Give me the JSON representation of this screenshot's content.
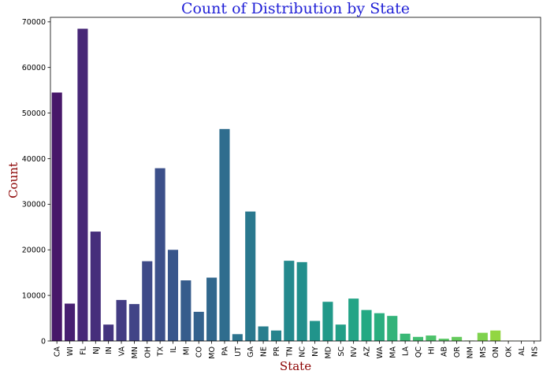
{
  "chart_data": {
    "type": "bar",
    "title": "Count of Distribution by State",
    "xlabel": "State",
    "ylabel": "Count",
    "ylim": [
      0,
      71000
    ],
    "yticks": [
      0,
      10000,
      20000,
      30000,
      40000,
      50000,
      60000,
      70000
    ],
    "grid": false,
    "categories": [
      "CA",
      "WI",
      "FL",
      "NJ",
      "IN",
      "VA",
      "MN",
      "OH",
      "TX",
      "IL",
      "MI",
      "CO",
      "MO",
      "PA",
      "UT",
      "GA",
      "NE",
      "PR",
      "TN",
      "NC",
      "NY",
      "MD",
      "SC",
      "NV",
      "AZ",
      "WA",
      "MA",
      "LA",
      "QC",
      "HI",
      "AB",
      "OR",
      "NM",
      "MS",
      "ON",
      "OK",
      "AL",
      "NS"
    ],
    "values": [
      54500,
      8200,
      68500,
      24000,
      3600,
      9000,
      8100,
      17500,
      37900,
      20000,
      13300,
      6400,
      13900,
      46500,
      1500,
      28400,
      3200,
      2300,
      17600,
      17300,
      4400,
      8600,
      3600,
      9300,
      6800,
      6100,
      5500,
      1600,
      900,
      1200,
      500,
      900,
      100,
      1800,
      2300,
      50,
      30,
      20
    ],
    "colors": {
      "title": "#1f1fd6",
      "axis_title": "#8b0000",
      "palette": "viridis"
    }
  }
}
